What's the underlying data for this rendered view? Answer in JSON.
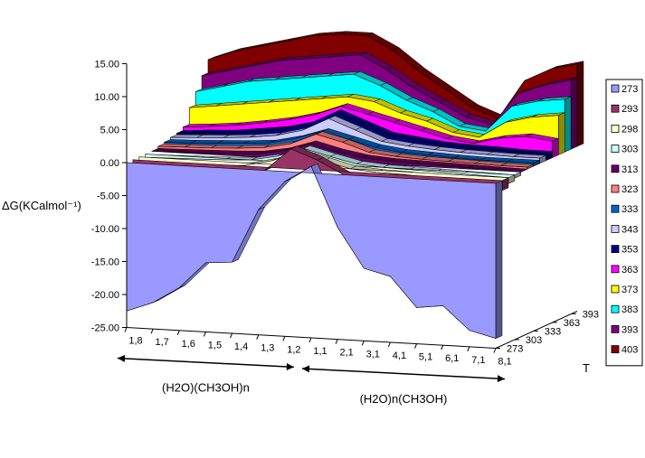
{
  "chart_data": {
    "type": "area",
    "style": "3d-ribbon",
    "ylabel": "ΔG(KCalmol⁻¹)",
    "zlabel": "T",
    "ylim": [
      -25,
      15
    ],
    "yticks": [
      "15.00",
      "10.00",
      "5.00",
      "0.00",
      "-5.00",
      "-10.00",
      "-15.00",
      "-20.00",
      "-25.00"
    ],
    "x_groups": [
      {
        "label": "(H2O)(CH3OH)n",
        "categories": [
          "1,8",
          "1,7",
          "1,6",
          "1,5",
          "1,4",
          "1,3",
          "1,2"
        ]
      },
      {
        "label": "(H2O)n(CH3OH)",
        "categories": [
          "1,1",
          "2,1",
          "3,1",
          "4,1",
          "5,1",
          "6,1",
          "7,1",
          "8,1"
        ]
      }
    ],
    "categories": [
      "1,8",
      "1,7",
      "1,6",
      "1,5",
      "1,4",
      "1,3",
      "1,2",
      "1,1",
      "2,1",
      "3,1",
      "4,1",
      "5,1",
      "6,1",
      "7,1",
      "8,1"
    ],
    "z_ticks": [
      "273",
      "303",
      "333",
      "363",
      "393"
    ],
    "legend_position": "right",
    "series": [
      {
        "name": "273",
        "color": "#9999ff",
        "values": [
          -22.5,
          -21.0,
          -18.5,
          -14.5,
          -14.2,
          -6.0,
          -1.5,
          1.0,
          -8.0,
          -14.0,
          -15.0,
          -19.5,
          -19.0,
          -22.5,
          -23.5
        ]
      },
      {
        "name": "293",
        "color": "#993366",
        "values": [
          -1.5,
          -1.4,
          -1.3,
          -1.2,
          -1.0,
          -0.5,
          3.0,
          1.5,
          -0.5,
          -1.0,
          -1.0,
          -1.2,
          -1.3,
          -1.4,
          -1.5
        ]
      },
      {
        "name": "298",
        "color": "#ffffcc",
        "values": [
          -1.0,
          -0.9,
          -0.8,
          -0.6,
          -0.4,
          0.5,
          2.0,
          1.0,
          0.0,
          -0.3,
          -0.4,
          -0.6,
          -0.7,
          -0.8,
          -0.9
        ]
      },
      {
        "name": "303",
        "color": "#ccffff",
        "values": [
          -0.5,
          -0.4,
          -0.3,
          -0.2,
          0.0,
          0.8,
          2.2,
          1.2,
          0.3,
          0.0,
          -0.1,
          -0.2,
          -0.3,
          -0.4,
          -0.5
        ]
      },
      {
        "name": "313",
        "color": "#660066",
        "values": [
          0.0,
          0.1,
          0.2,
          0.3,
          0.5,
          1.2,
          2.5,
          1.5,
          0.8,
          0.5,
          0.4,
          0.3,
          0.2,
          0.1,
          0.0
        ]
      },
      {
        "name": "323",
        "color": "#ff8080",
        "values": [
          0.3,
          0.4,
          0.5,
          0.7,
          1.0,
          1.8,
          3.5,
          2.5,
          1.2,
          0.8,
          0.6,
          0.5,
          0.4,
          0.3,
          0.3
        ]
      },
      {
        "name": "333",
        "color": "#0066cc",
        "values": [
          0.5,
          0.6,
          0.8,
          1.0,
          1.3,
          2.2,
          3.5,
          2.5,
          1.5,
          1.0,
          0.8,
          0.6,
          0.5,
          0.5,
          0.5
        ]
      },
      {
        "name": "343",
        "color": "#ccccff",
        "values": [
          0.8,
          1.0,
          1.2,
          1.5,
          2.0,
          3.0,
          5.0,
          3.5,
          2.0,
          1.5,
          1.2,
          1.0,
          0.9,
          0.8,
          0.8
        ]
      },
      {
        "name": "353",
        "color": "#000080",
        "values": [
          1.0,
          1.3,
          1.5,
          2.0,
          2.5,
          3.5,
          5.5,
          4.0,
          2.5,
          2.0,
          1.5,
          1.3,
          1.2,
          1.0,
          1.0
        ]
      },
      {
        "name": "363",
        "color": "#ff00ff",
        "values": [
          1.5,
          1.8,
          2.2,
          2.8,
          3.5,
          4.5,
          6.0,
          5.0,
          4.0,
          3.0,
          2.0,
          1.5,
          2.5,
          3.0,
          2.5
        ]
      },
      {
        "name": "373",
        "color": "#ffff00",
        "values": [
          4.0,
          4.5,
          5.0,
          5.5,
          6.0,
          6.5,
          7.0,
          6.5,
          5.0,
          4.0,
          2.5,
          2.0,
          4.5,
          5.5,
          6.0
        ]
      },
      {
        "name": "383",
        "color": "#00ffff",
        "values": [
          6.0,
          7.0,
          8.0,
          8.5,
          9.0,
          9.5,
          10.0,
          8.5,
          6.5,
          5.0,
          3.0,
          2.5,
          6.5,
          7.5,
          8.0
        ]
      },
      {
        "name": "393",
        "color": "#800080",
        "values": [
          8.0,
          9.0,
          10.0,
          11.0,
          11.5,
          12.0,
          12.5,
          10.5,
          8.0,
          6.0,
          4.0,
          3.0,
          8.0,
          9.5,
          10.5
        ]
      },
      {
        "name": "403",
        "color": "#800000",
        "values": [
          10.0,
          11.5,
          12.5,
          13.5,
          14.5,
          15.0,
          15.0,
          13.0,
          10.0,
          7.5,
          5.0,
          3.5,
          9.5,
          11.5,
          12.5
        ]
      }
    ]
  }
}
